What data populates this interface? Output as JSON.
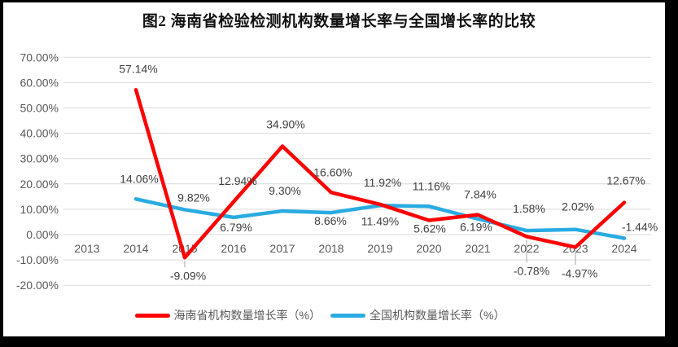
{
  "title": "图2 海南省检验检测机构数量增长率与全国增长率的比较",
  "legend": {
    "items": [
      {
        "label": "海南省机构数量增长率（%）",
        "color": "#FF0000"
      },
      {
        "label": "全国机构数量增长率（%）",
        "color": "#29ABE2"
      }
    ]
  },
  "colors": {
    "hainan_line": "#FF0000",
    "national_line": "#29ABE2",
    "gridline": "#D9D9D9",
    "leader": "#A6A6A6",
    "axis_text": "#595959",
    "label_text": "#404040",
    "frame": "#000000"
  },
  "chart_data": {
    "type": "line",
    "title": "图2 海南省检验检测机构数量增长率与全国增长率的比较",
    "categories": [
      "2013",
      "2014",
      "2015",
      "2016",
      "2017",
      "2018",
      "2019",
      "2020",
      "2021",
      "2022",
      "2023",
      "2024"
    ],
    "grid": true,
    "legend_position": "bottom",
    "y_axis": {
      "min": -20,
      "max": 70,
      "step": 10,
      "tick_labels": [
        "70.00%",
        "60.00%",
        "50.00%",
        "40.00%",
        "30.00%",
        "20.00%",
        "10.00%",
        "0.00%",
        "-10.00%",
        "-20.00%"
      ]
    },
    "series": [
      {
        "name": "海南省机构数量增长率（%）",
        "color": "#FF0000",
        "points": [
          {
            "category": "2013",
            "value": null
          },
          {
            "category": "2014",
            "value": 57.14,
            "label": "57.14%",
            "label_dx": 3,
            "label_dy": -26
          },
          {
            "category": "2015",
            "value": -9.09,
            "label": "-9.09%",
            "label_dx": 4,
            "label_dy": 22,
            "leader": true
          },
          {
            "category": "2016",
            "value": 12.94,
            "label": "12.94%",
            "label_dx": 5,
            "label_dy": -26
          },
          {
            "category": "2017",
            "value": 34.9,
            "label": "34.90%",
            "label_dx": 4,
            "label_dy": -27
          },
          {
            "category": "2018",
            "value": 16.6,
            "label": "16.60%",
            "label_dx": 2,
            "label_dy": -25
          },
          {
            "category": "2019",
            "value": 11.92,
            "label": "11.92%",
            "label_dx": 3,
            "label_dy": -27
          },
          {
            "category": "2020",
            "value": 5.62,
            "label": "5.62%",
            "label_dx": 1,
            "label_dy": 10
          },
          {
            "category": "2021",
            "value": 7.84,
            "label": "7.84%",
            "label_dx": 3,
            "label_dy": -25
          },
          {
            "category": "2022",
            "value": -0.78,
            "label": "-0.78%",
            "label_dx": 6,
            "label_dy": 42,
            "leader": true
          },
          {
            "category": "2023",
            "value": -4.97,
            "label": "-4.97%",
            "label_dx": 5,
            "label_dy": 32,
            "leader": true
          },
          {
            "category": "2024",
            "value": 12.67,
            "label": "12.67%",
            "label_dx": 2,
            "label_dy": -27
          }
        ]
      },
      {
        "name": "全国机构数量增长率（%）",
        "color": "#29ABE2",
        "points": [
          {
            "category": "2013",
            "value": null
          },
          {
            "category": "2014",
            "value": 14.06,
            "label": "14.06%",
            "label_dx": 4,
            "label_dy": -25
          },
          {
            "category": "2015",
            "value": 9.82,
            "label": "9.82%",
            "label_dx": 11,
            "label_dy": -15
          },
          {
            "category": "2016",
            "value": 6.79,
            "label": "6.79%",
            "label_dx": 3,
            "label_dy": 12
          },
          {
            "category": "2017",
            "value": 9.3,
            "label": "9.30%",
            "label_dx": 3,
            "label_dy": -25
          },
          {
            "category": "2018",
            "value": 8.66,
            "label": "8.66%",
            "label_dx": -1,
            "label_dy": 10
          },
          {
            "category": "2019",
            "value": 11.49,
            "label": "11.49%",
            "label_dx": 0,
            "label_dy": 19
          },
          {
            "category": "2020",
            "value": 11.16,
            "label": "11.16%",
            "label_dx": 3,
            "label_dy": -25
          },
          {
            "category": "2021",
            "value": 6.19,
            "label": "6.19%",
            "label_dx": -2,
            "label_dy": 10
          },
          {
            "category": "2022",
            "value": 1.58,
            "label": "1.58%",
            "label_dx": 3,
            "label_dy": -27
          },
          {
            "category": "2023",
            "value": 2.02,
            "label": "2.02%",
            "label_dx": 3,
            "label_dy": -28
          },
          {
            "category": "2024",
            "value": -1.44,
            "label": "-1.44%",
            "label_dx": 19,
            "label_dy": -14
          }
        ]
      }
    ]
  }
}
